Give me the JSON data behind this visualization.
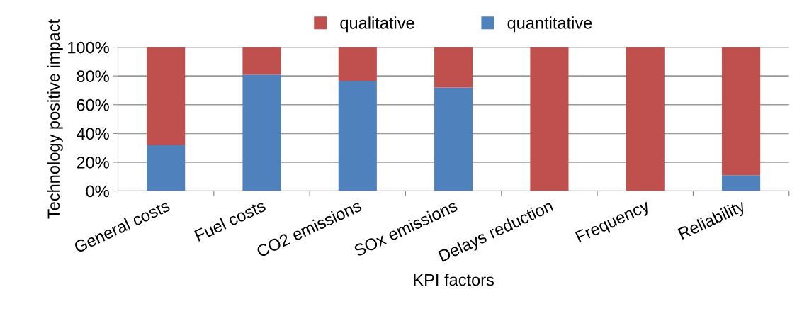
{
  "chart_data": {
    "type": "bar",
    "stacked": true,
    "xlabel": "KPI factors",
    "ylabel": "Technology positive impact",
    "categories": [
      "General costs",
      "Fuel costs",
      "CO2 emissions",
      "SOx emissions",
      "Delays reduction",
      "Frequency",
      "Reliability"
    ],
    "series": [
      {
        "name": "quantitative",
        "color": "#4f81bd",
        "values": [
          32,
          81,
          76.5,
          72,
          0,
          0,
          11
        ]
      },
      {
        "name": "qualitative",
        "color": "#c0504d",
        "values": [
          68,
          19,
          23.5,
          28,
          100,
          100,
          89
        ]
      }
    ],
    "ylim": [
      0,
      100
    ],
    "yticks": [
      {
        "value": 0,
        "label": "0%"
      },
      {
        "value": 20,
        "label": "20%"
      },
      {
        "value": 40,
        "label": "40%"
      },
      {
        "value": 60,
        "label": "60%"
      },
      {
        "value": 80,
        "label": "80%"
      },
      {
        "value": 100,
        "label": "100%"
      }
    ],
    "grid": "y",
    "legend": "top"
  }
}
